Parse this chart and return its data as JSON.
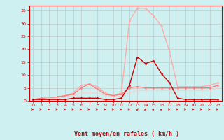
{
  "x": [
    0,
    1,
    2,
    3,
    4,
    5,
    6,
    7,
    8,
    9,
    10,
    11,
    12,
    13,
    14,
    15,
    16,
    17,
    18,
    19,
    20,
    21,
    22,
    23
  ],
  "rafales": [
    0.5,
    1,
    1,
    1.5,
    2,
    3,
    6,
    6.5,
    5.5,
    3,
    2,
    3,
    31,
    36,
    36,
    33,
    29,
    19,
    5.5,
    5.5,
    5.5,
    5.5,
    6,
    7
  ],
  "moyen": [
    0.5,
    0.5,
    0.5,
    0.5,
    0.5,
    1,
    1,
    1,
    1,
    0.5,
    0.5,
    1,
    6,
    17,
    14.5,
    15.5,
    10.5,
    7,
    1,
    0.5,
    0.5,
    0.5,
    0.5,
    0.5
  ],
  "line1": [
    0.5,
    1,
    1,
    1.5,
    2,
    2.5,
    5,
    6.5,
    4.5,
    2.5,
    2,
    2.5,
    5,
    5.5,
    5,
    5,
    5,
    5,
    5,
    5,
    5,
    5,
    5,
    6
  ],
  "line3": [
    0.5,
    0.5,
    1,
    1,
    1.5,
    2,
    3,
    3,
    3,
    2,
    1.5,
    2,
    3,
    4,
    4,
    4,
    4,
    4,
    4,
    4,
    4,
    4,
    4,
    5
  ],
  "rafales_color": "#ffaaaa",
  "moyen_color": "#cc0000",
  "line1_color": "#ff7777",
  "line3_color": "#ffcccc",
  "bg_color": "#cff0f0",
  "grid_color": "#bbbbbb",
  "xlabel": "Vent moyen/en rafales ( km/h )",
  "ylim": [
    0,
    37
  ],
  "yticks": [
    0,
    5,
    10,
    15,
    20,
    25,
    30,
    35
  ],
  "xticks": [
    0,
    1,
    2,
    3,
    4,
    5,
    6,
    7,
    8,
    9,
    10,
    11,
    12,
    13,
    14,
    15,
    16,
    17,
    18,
    19,
    20,
    21,
    22,
    23
  ],
  "axis_color": "#cc0000",
  "tick_color": "#cc0000",
  "label_color": "#cc0000",
  "arrow_angles": [
    0,
    0,
    0,
    0,
    0,
    0,
    0,
    0,
    0,
    0,
    0,
    0,
    0,
    45,
    45,
    30,
    20,
    0,
    0,
    0,
    0,
    0,
    0,
    0
  ]
}
